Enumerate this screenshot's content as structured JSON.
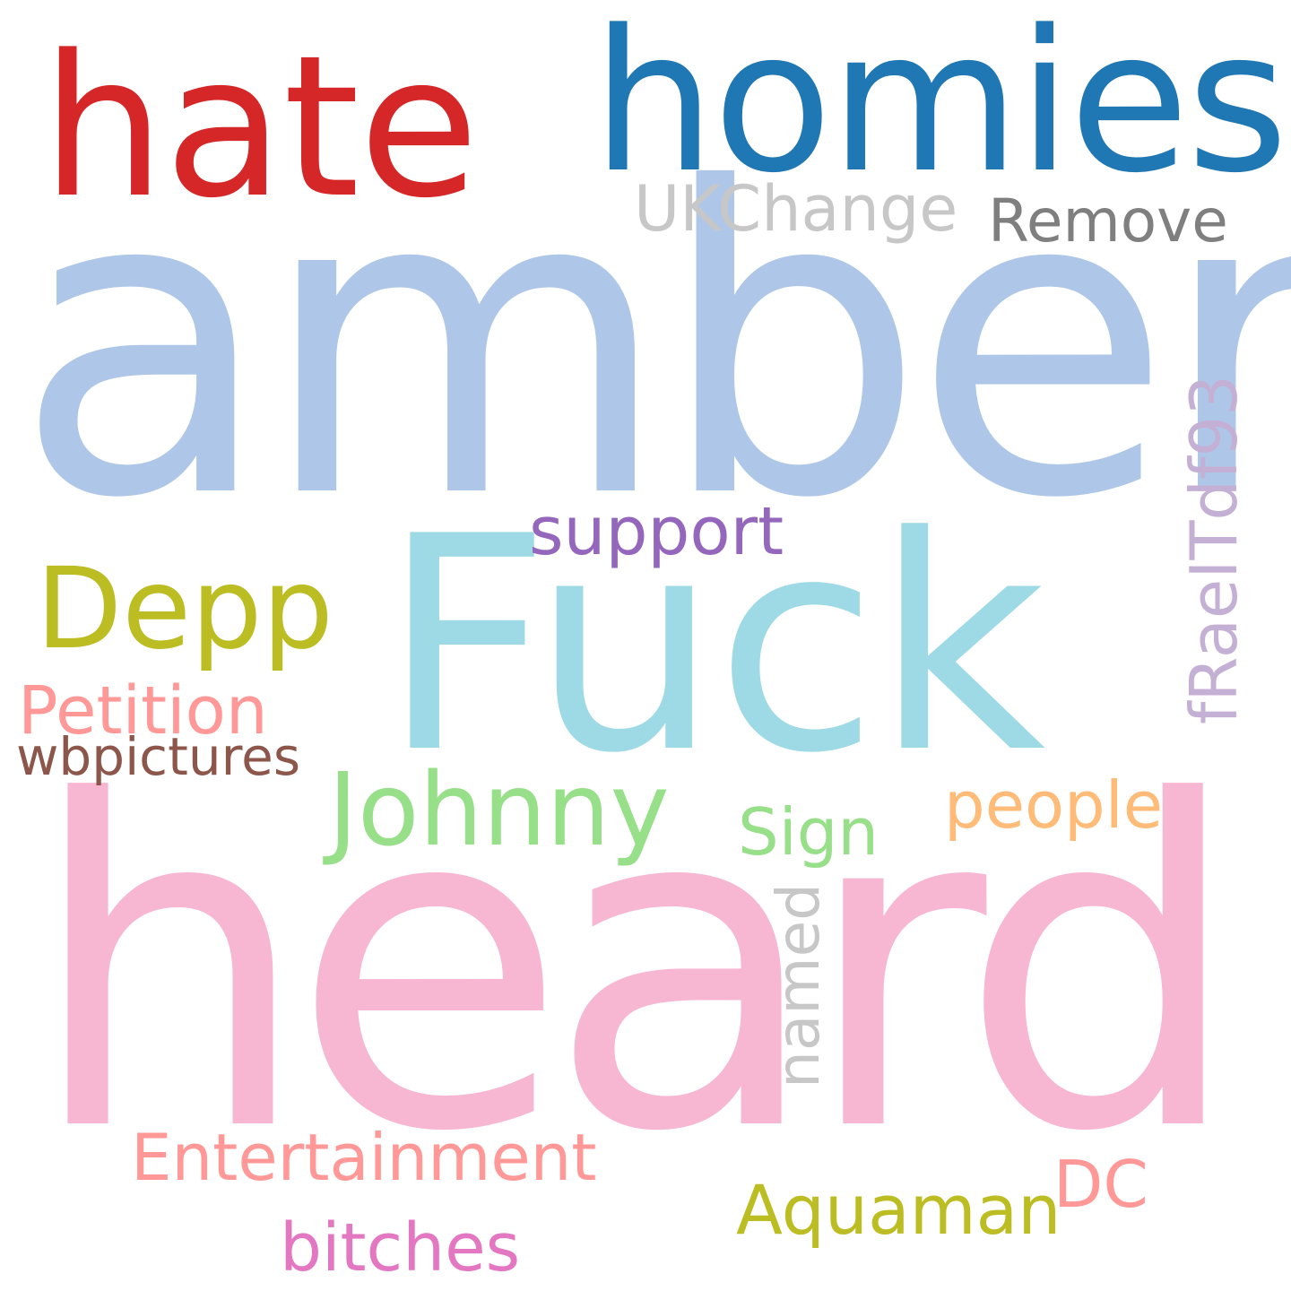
{
  "words": [
    {
      "key": "heard",
      "text": "heard",
      "color": "#f7b6d2"
    },
    {
      "key": "amber",
      "text": "amber",
      "color": "#aec7e8"
    },
    {
      "key": "fuck",
      "text": "Fuck",
      "color": "#9edae5"
    },
    {
      "key": "homies",
      "text": "homies",
      "color": "#1f77b4"
    },
    {
      "key": "hate",
      "text": "hate",
      "color": "#d62728"
    },
    {
      "key": "depp",
      "text": "Depp",
      "color": "#bcbd22"
    },
    {
      "key": "johnny",
      "text": "Johnny",
      "color": "#98df8a"
    },
    {
      "key": "ukchange",
      "text": "UKChange",
      "color": "#c7c7c7"
    },
    {
      "key": "remove",
      "text": "Remove",
      "color": "#7f7f7f"
    },
    {
      "key": "support",
      "text": "support",
      "color": "#9467bd"
    },
    {
      "key": "fraeitdf93",
      "text": "fRaeITdf93",
      "color": "#c5b0d5"
    },
    {
      "key": "petition",
      "text": "Petition",
      "color": "#ff9896"
    },
    {
      "key": "wbpictures",
      "text": "wbpictures",
      "color": "#8c564b"
    },
    {
      "key": "people",
      "text": "people",
      "color": "#ffbb78"
    },
    {
      "key": "sign",
      "text": "Sign",
      "color": "#98df8a"
    },
    {
      "key": "named",
      "text": "named",
      "color": "#c7c7c7"
    },
    {
      "key": "entertainment",
      "text": "Entertainment",
      "color": "#ff9896"
    },
    {
      "key": "dc",
      "text": "DC",
      "color": "#ff9896"
    },
    {
      "key": "aquaman",
      "text": "Aquaman",
      "color": "#bcbd22"
    },
    {
      "key": "bitches",
      "text": "bitches",
      "color": "#e377c2"
    }
  ]
}
